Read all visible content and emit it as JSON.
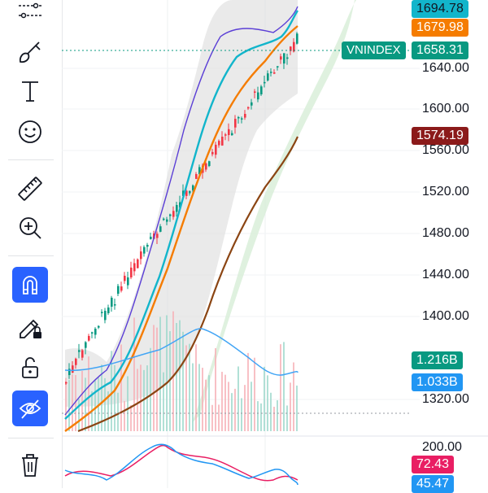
{
  "toolbar": {
    "tools": [
      {
        "name": "indicator-tool-icon"
      },
      {
        "name": "brush-tool-icon"
      },
      {
        "name": "text-tool-icon"
      },
      {
        "name": "emoji-tool-icon"
      },
      {
        "name": "ruler-tool-icon"
      },
      {
        "name": "zoom-in-tool-icon"
      },
      {
        "name": "magnet-tool-icon",
        "active": true
      },
      {
        "name": "lock-drawing-tool-icon"
      },
      {
        "name": "unlock-icon"
      },
      {
        "name": "hide-drawings-icon",
        "active": true
      },
      {
        "name": "trash-icon"
      }
    ]
  },
  "price_axis": {
    "ticks": [
      "1640.00",
      "1600.00",
      "1560.00",
      "1520.00",
      "1480.00",
      "1440.00",
      "1400.00",
      "1320.00"
    ]
  },
  "price_tags": {
    "ma_cyan": "1694.78",
    "ma_orange": "1679.98",
    "symbol": "VNINDEX",
    "last_price": "1658.31",
    "ma_brown": "1574.19",
    "volume_1": "1.216B",
    "volume_2": "1.033B"
  },
  "oscillator": {
    "tick_top": "200.00",
    "value_1": "72.43",
    "value_2": "45.47"
  },
  "colors": {
    "up": "#089981",
    "down": "#f23645",
    "ma_cyan": "#12b5cb",
    "ma_orange": "#f57c00",
    "ma_brown": "#8b4513",
    "ma_purple": "#5b3fd6",
    "cloud": "#c8e6c9",
    "band": "#d9d9d9",
    "volume_ma": "#42a5f5",
    "osc_pink": "#e91e63",
    "osc_blue": "#2196f3"
  }
}
